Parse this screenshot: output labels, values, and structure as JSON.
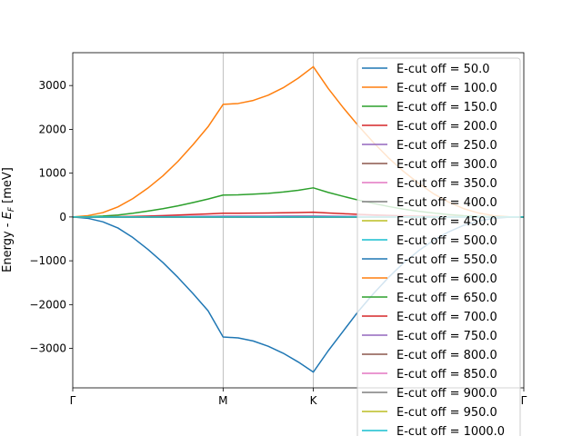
{
  "chart_data": {
    "type": "line",
    "title": "",
    "xlabel": "",
    "ylabel_prefix": "Energy - ",
    "ylabel_sym": "E",
    "ylabel_sub": "F",
    "ylabel_unit": " [meV]",
    "xlim": [
      0,
      3
    ],
    "ylim": [
      -3900,
      3750
    ],
    "x_ticks": [
      {
        "x": 0,
        "label": "Γ"
      },
      {
        "x": 1,
        "label": "M"
      },
      {
        "x": 1.6,
        "label": "K"
      },
      {
        "x": 3,
        "label": "Γ"
      }
    ],
    "y_ticks": [
      -3000,
      -2000,
      -1000,
      0,
      1000,
      2000,
      3000
    ],
    "vlines_at": [
      1,
      1.6
    ],
    "zero_line": {
      "y": 0,
      "style": "dashed",
      "color": "#000000"
    },
    "legend_position": "upper-right",
    "x": [
      0,
      0.1,
      0.2,
      0.3,
      0.4,
      0.5,
      0.6,
      0.7,
      0.8,
      0.9,
      1.0,
      1.1,
      1.2,
      1.3,
      1.4,
      1.5,
      1.6,
      1.7,
      1.8,
      1.9,
      2.0,
      2.1,
      2.2,
      2.3,
      2.4,
      2.5,
      2.6,
      2.7,
      2.8,
      2.9,
      3.0
    ],
    "series": [
      {
        "name": "E-cut off = 50.0",
        "color": "#1f77b4",
        "values": [
          0,
          -30,
          -110,
          -250,
          -470,
          -740,
          -1040,
          -1380,
          -1750,
          -2140,
          -2740,
          -2760,
          -2830,
          -2950,
          -3110,
          -3310,
          -3540,
          -3050,
          -2600,
          -2150,
          -1750,
          -1380,
          -1050,
          -770,
          -530,
          -340,
          -190,
          -90,
          -30,
          -5,
          0
        ]
      },
      {
        "name": "E-cut off = 100.0",
        "color": "#ff7f0e",
        "values": [
          0,
          30,
          100,
          230,
          420,
          660,
          940,
          1270,
          1650,
          2060,
          2570,
          2590,
          2660,
          2780,
          2950,
          3170,
          3430,
          2930,
          2490,
          2080,
          1700,
          1350,
          1040,
          770,
          530,
          340,
          190,
          90,
          30,
          5,
          0
        ]
      },
      {
        "name": "E-cut off = 150.0",
        "color": "#2ca02c",
        "values": [
          0,
          6,
          20,
          45,
          85,
          135,
          190,
          255,
          330,
          410,
          500,
          505,
          520,
          540,
          570,
          610,
          665,
          560,
          470,
          385,
          310,
          240,
          180,
          130,
          90,
          55,
          30,
          14,
          5,
          1,
          0
        ]
      },
      {
        "name": "E-cut off = 200.0",
        "color": "#d62728",
        "values": [
          0,
          1,
          3,
          8,
          14,
          22,
          32,
          43,
          56,
          70,
          85,
          86,
          88,
          91,
          95,
          100,
          108,
          90,
          75,
          61,
          48,
          37,
          27,
          19,
          13,
          8,
          4,
          2,
          1,
          0,
          0
        ]
      },
      {
        "name": "E-cut off = 250.0",
        "color": "#9467bd",
        "values": [
          0,
          0,
          1,
          2,
          3,
          5,
          7,
          9,
          12,
          15,
          18,
          18,
          19,
          19,
          20,
          21,
          22,
          18,
          15,
          12,
          10,
          7,
          5,
          4,
          2,
          1,
          1,
          0,
          0,
          0,
          0
        ]
      },
      {
        "name": "E-cut off = 300.0",
        "color": "#8c564b",
        "values": [
          0,
          0,
          0,
          1,
          1,
          1,
          2,
          2,
          3,
          3,
          4,
          4,
          4,
          4,
          4,
          5,
          5,
          4,
          3,
          3,
          2,
          2,
          1,
          1,
          1,
          0,
          0,
          0,
          0,
          0,
          0
        ]
      },
      {
        "name": "E-cut off = 350.0",
        "color": "#e377c2",
        "values": [
          0,
          0,
          0,
          0,
          0,
          1,
          1,
          1,
          1,
          1,
          1,
          1,
          1,
          1,
          1,
          1,
          1,
          1,
          1,
          1,
          1,
          0,
          0,
          0,
          0,
          0,
          0,
          0,
          0,
          0,
          0
        ]
      },
      {
        "name": "E-cut off = 400.0",
        "color": "#7f7f7f",
        "values": [
          0,
          0,
          0,
          0,
          0,
          0,
          0,
          0,
          0,
          0,
          0,
          0,
          0,
          0,
          0,
          0,
          0,
          0,
          0,
          0,
          0,
          0,
          0,
          0,
          0,
          0,
          0,
          0,
          0,
          0,
          0
        ]
      },
      {
        "name": "E-cut off = 450.0",
        "color": "#bcbd22",
        "values": [
          0,
          0,
          0,
          0,
          0,
          0,
          0,
          0,
          0,
          0,
          0,
          0,
          0,
          0,
          0,
          0,
          0,
          0,
          0,
          0,
          0,
          0,
          0,
          0,
          0,
          0,
          0,
          0,
          0,
          0,
          0
        ]
      },
      {
        "name": "E-cut off = 500.0",
        "color": "#17becf",
        "values": [
          0,
          0,
          0,
          0,
          0,
          0,
          0,
          0,
          0,
          0,
          0,
          0,
          0,
          0,
          0,
          0,
          0,
          0,
          0,
          0,
          0,
          0,
          0,
          0,
          0,
          0,
          0,
          0,
          0,
          0,
          0
        ]
      },
      {
        "name": "E-cut off = 550.0",
        "color": "#1f77b4",
        "values": [
          0,
          0,
          0,
          0,
          0,
          0,
          0,
          0,
          0,
          0,
          0,
          0,
          0,
          0,
          0,
          0,
          0,
          0,
          0,
          0,
          0,
          0,
          0,
          0,
          0,
          0,
          0,
          0,
          0,
          0,
          0
        ]
      },
      {
        "name": "E-cut off = 600.0",
        "color": "#ff7f0e",
        "values": [
          0,
          0,
          0,
          0,
          0,
          0,
          0,
          0,
          0,
          0,
          0,
          0,
          0,
          0,
          0,
          0,
          0,
          0,
          0,
          0,
          0,
          0,
          0,
          0,
          0,
          0,
          0,
          0,
          0,
          0,
          0
        ]
      },
      {
        "name": "E-cut off = 650.0",
        "color": "#2ca02c",
        "values": [
          0,
          0,
          0,
          0,
          0,
          0,
          0,
          0,
          0,
          0,
          0,
          0,
          0,
          0,
          0,
          0,
          0,
          0,
          0,
          0,
          0,
          0,
          0,
          0,
          0,
          0,
          0,
          0,
          0,
          0,
          0
        ]
      },
      {
        "name": "E-cut off = 700.0",
        "color": "#d62728",
        "values": [
          0,
          0,
          0,
          0,
          0,
          0,
          0,
          0,
          0,
          0,
          0,
          0,
          0,
          0,
          0,
          0,
          0,
          0,
          0,
          0,
          0,
          0,
          0,
          0,
          0,
          0,
          0,
          0,
          0,
          0,
          0
        ]
      },
      {
        "name": "E-cut off = 750.0",
        "color": "#9467bd",
        "values": [
          0,
          0,
          0,
          0,
          0,
          0,
          0,
          0,
          0,
          0,
          0,
          0,
          0,
          0,
          0,
          0,
          0,
          0,
          0,
          0,
          0,
          0,
          0,
          0,
          0,
          0,
          0,
          0,
          0,
          0,
          0
        ]
      },
      {
        "name": "E-cut off = 800.0",
        "color": "#8c564b",
        "values": [
          0,
          0,
          0,
          0,
          0,
          0,
          0,
          0,
          0,
          0,
          0,
          0,
          0,
          0,
          0,
          0,
          0,
          0,
          0,
          0,
          0,
          0,
          0,
          0,
          0,
          0,
          0,
          0,
          0,
          0,
          0
        ]
      },
      {
        "name": "E-cut off = 850.0",
        "color": "#e377c2",
        "values": [
          0,
          0,
          0,
          0,
          0,
          0,
          0,
          0,
          0,
          0,
          0,
          0,
          0,
          0,
          0,
          0,
          0,
          0,
          0,
          0,
          0,
          0,
          0,
          0,
          0,
          0,
          0,
          0,
          0,
          0,
          0
        ]
      },
      {
        "name": "E-cut off = 900.0",
        "color": "#7f7f7f",
        "values": [
          0,
          0,
          0,
          0,
          0,
          0,
          0,
          0,
          0,
          0,
          0,
          0,
          0,
          0,
          0,
          0,
          0,
          0,
          0,
          0,
          0,
          0,
          0,
          0,
          0,
          0,
          0,
          0,
          0,
          0,
          0
        ]
      },
      {
        "name": "E-cut off = 950.0",
        "color": "#bcbd22",
        "values": [
          0,
          0,
          0,
          0,
          0,
          0,
          0,
          0,
          0,
          0,
          0,
          0,
          0,
          0,
          0,
          0,
          0,
          0,
          0,
          0,
          0,
          0,
          0,
          0,
          0,
          0,
          0,
          0,
          0,
          0,
          0
        ]
      },
      {
        "name": "E-cut off = 1000.0",
        "color": "#17becf",
        "values": [
          0,
          0,
          0,
          0,
          0,
          0,
          0,
          0,
          0,
          0,
          0,
          0,
          0,
          0,
          0,
          0,
          0,
          0,
          0,
          0,
          0,
          0,
          0,
          0,
          0,
          0,
          0,
          0,
          0,
          0,
          0
        ]
      }
    ]
  }
}
